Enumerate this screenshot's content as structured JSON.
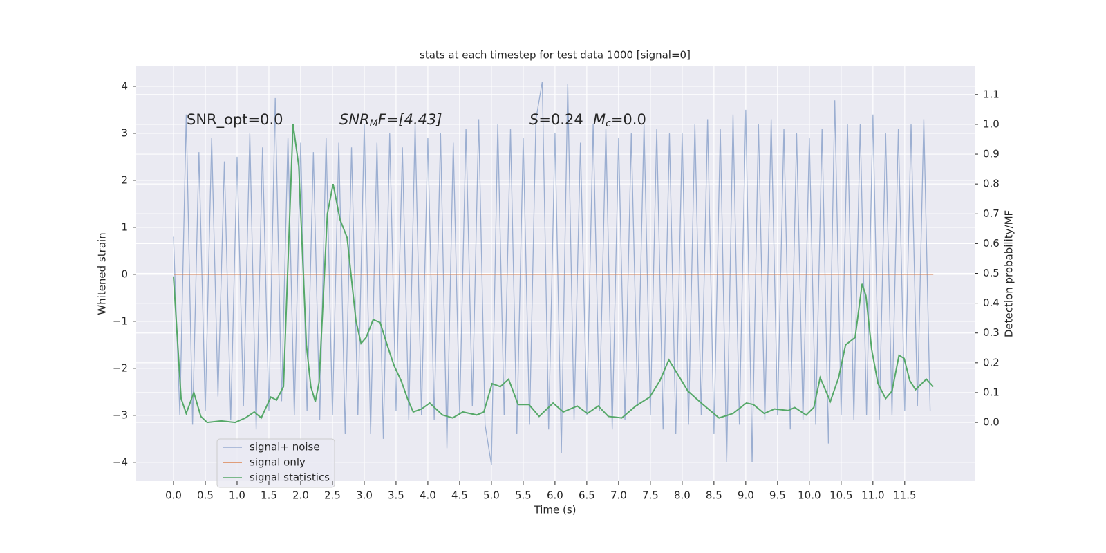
{
  "chart_data": {
    "type": "line",
    "title": "stats at each timestep for test data 1000 [signal=0]",
    "xlabel": "Time (s)",
    "ylabel": "Whitened strain",
    "y2label": "Detection probability/MF",
    "annotations": [
      [
        "SNR_opt=0.0"
      ],
      [
        "SNR",
        "M",
        "F=[4.43]"
      ],
      [
        "S",
        "=0.24",
        "M",
        "c",
        "=0.0"
      ]
    ],
    "xlim": [
      -0.587,
      12.6
    ],
    "ylim": [
      -4.4,
      4.44
    ],
    "y2lim": [
      -0.197,
      1.197
    ],
    "xticks": [
      {
        "value": 0,
        "label": "0.0"
      },
      0.5,
      {
        "value": 1,
        "label": "1.0"
      },
      1.5,
      {
        "value": 2,
        "label": "2.0"
      },
      2.5,
      {
        "value": 3,
        "label": "3.0"
      },
      3.5,
      {
        "value": 4,
        "label": "4.0"
      },
      4.5,
      {
        "value": 5,
        "label": "5.0"
      },
      5.5,
      {
        "value": 6,
        "label": "6.0"
      },
      6.5,
      {
        "value": 7,
        "label": "7.0"
      },
      7.5,
      {
        "value": 8,
        "label": "8.0"
      },
      8.5,
      {
        "value": 9,
        "label": "9.0"
      },
      9.5,
      {
        "value": 10,
        "label": "10.0"
      },
      10.5,
      {
        "value": 11,
        "label": "11.0"
      },
      11.5
    ],
    "yticks": [
      {
        "value": -4,
        "label": "−4"
      },
      {
        "value": -3,
        "label": "−3"
      },
      {
        "value": -2,
        "label": "−2"
      },
      {
        "value": -1,
        "label": "−1"
      },
      0,
      1,
      2,
      3,
      4
    ],
    "y2ticks": [
      {
        "value": 0,
        "label": "0.0"
      },
      0.1,
      0.2,
      0.3,
      0.4,
      0.5,
      0.6,
      0.7,
      0.8,
      0.9,
      {
        "value": 1,
        "label": "1.0"
      },
      1.1
    ],
    "grid": true,
    "legend_loc": "lower left",
    "series": [
      {
        "name": "signal+ noise",
        "color": "#4c72b0",
        "opacity": 0.5,
        "x": [
          0.0,
          0.1,
          0.2,
          0.3,
          0.4,
          0.5,
          0.6,
          0.7,
          0.8,
          0.9,
          1.0,
          1.1,
          1.2,
          1.3,
          1.4,
          1.5,
          1.6,
          1.7,
          1.8,
          1.9,
          2.0,
          2.1,
          2.2,
          2.3,
          2.4,
          2.5,
          2.6,
          2.7,
          2.8,
          2.9,
          3.0,
          3.1,
          3.2,
          3.3,
          3.4,
          3.5,
          3.6,
          3.7,
          3.8,
          3.9,
          4.0,
          4.1,
          4.2,
          4.3,
          4.4,
          4.5,
          4.6,
          4.7,
          4.8,
          4.9,
          5.0,
          5.1,
          5.2,
          5.3,
          5.4,
          5.5,
          5.6,
          5.7,
          5.8,
          5.9,
          6.0,
          6.1,
          6.2,
          6.3,
          6.4,
          6.5,
          6.6,
          6.7,
          6.8,
          6.9,
          7.0,
          7.1,
          7.2,
          7.3,
          7.4,
          7.5,
          7.6,
          7.7,
          7.8,
          7.9,
          8.0,
          8.1,
          8.2,
          8.3,
          8.4,
          8.5,
          8.6,
          8.7,
          8.8,
          8.9,
          9.0,
          9.1,
          9.2,
          9.3,
          9.4,
          9.5,
          9.6,
          9.7,
          9.8,
          9.9,
          10.0,
          10.1,
          10.2,
          10.3,
          10.4,
          10.5,
          10.6,
          10.7,
          10.8,
          10.9,
          11.0,
          11.1,
          11.2,
          11.3,
          11.4,
          11.5,
          11.6,
          11.7,
          11.8,
          11.9
        ],
        "values": [
          0.8,
          -3.0,
          3.4,
          -3.2,
          2.6,
          -2.9,
          2.9,
          -2.6,
          2.4,
          -3.1,
          2.5,
          -2.8,
          3.0,
          -3.3,
          2.7,
          -2.9,
          3.75,
          -2.7,
          2.9,
          -3.0,
          2.8,
          -2.9,
          2.6,
          -3.1,
          2.9,
          -3.0,
          2.8,
          -3.4,
          2.7,
          -3.0,
          3.2,
          -3.4,
          2.8,
          -3.5,
          3.0,
          -2.9,
          2.7,
          -3.1,
          3.2,
          -3.0,
          2.9,
          -3.1,
          3.0,
          -3.7,
          2.8,
          -3.0,
          3.1,
          -2.8,
          3.3,
          -3.2,
          -4.05,
          3.2,
          -3.0,
          3.1,
          -3.4,
          2.9,
          -3.2,
          3.3,
          4.1,
          -3.3,
          3.0,
          -3.8,
          4.05,
          -3.1,
          2.8,
          -3.0,
          3.2,
          -2.9,
          3.1,
          -3.3,
          2.9,
          -3.1,
          3.0,
          -2.8,
          3.2,
          -3.0,
          3.1,
          -3.3,
          3.0,
          -3.4,
          3.0,
          -3.2,
          3.2,
          -3.0,
          3.3,
          -3.4,
          3.1,
          -4.0,
          3.4,
          -3.2,
          3.5,
          -4.0,
          3.2,
          -3.1,
          3.3,
          -3.0,
          3.1,
          -3.3,
          3.0,
          -3.1,
          2.9,
          -3.2,
          3.1,
          -3.6,
          3.7,
          -3.0,
          3.2,
          -3.1,
          3.2,
          -3.0,
          3.4,
          -3.1,
          3.0,
          -3.0,
          3.1,
          -2.9,
          3.2,
          -2.8,
          3.3,
          -2.9
        ]
      },
      {
        "name": "signal only",
        "color": "#dd8452",
        "x": [
          0.0,
          11.95
        ],
        "values": [
          0,
          0
        ]
      },
      {
        "name": "signal statistics",
        "color": "#55a868",
        "axis": "y2",
        "x": [
          0.0,
          0.12,
          0.2,
          0.32,
          0.43,
          0.53,
          0.75,
          0.97,
          1.13,
          1.27,
          1.38,
          1.53,
          1.62,
          1.73,
          1.88,
          1.97,
          2.09,
          2.16,
          2.23,
          2.29,
          2.42,
          2.51,
          2.62,
          2.73,
          2.87,
          2.95,
          3.03,
          3.14,
          3.25,
          3.36,
          3.47,
          3.58,
          3.68,
          3.77,
          3.9,
          4.03,
          4.23,
          4.39,
          4.55,
          4.77,
          4.88,
          5.01,
          5.14,
          5.27,
          5.42,
          5.59,
          5.75,
          5.97,
          6.13,
          6.35,
          6.51,
          6.68,
          6.84,
          7.05,
          7.27,
          7.49,
          7.65,
          7.79,
          7.92,
          8.09,
          8.3,
          8.58,
          8.8,
          9.01,
          9.12,
          9.29,
          9.45,
          9.67,
          9.77,
          9.95,
          10.07,
          10.17,
          10.33,
          10.46,
          10.57,
          10.72,
          10.83,
          10.89,
          10.98,
          11.08,
          11.2,
          11.3,
          11.41,
          11.49,
          11.58,
          11.67,
          11.84,
          11.95
        ],
        "values": [
          0.49,
          0.08,
          0.03,
          0.1,
          0.02,
          0.0,
          0.005,
          0.0,
          0.015,
          0.035,
          0.015,
          0.085,
          0.075,
          0.12,
          1.0,
          0.86,
          0.26,
          0.12,
          0.07,
          0.135,
          0.7,
          0.8,
          0.68,
          0.62,
          0.34,
          0.265,
          0.285,
          0.345,
          0.335,
          0.26,
          0.19,
          0.14,
          0.08,
          0.035,
          0.045,
          0.065,
          0.025,
          0.015,
          0.035,
          0.025,
          0.035,
          0.13,
          0.12,
          0.145,
          0.06,
          0.06,
          0.02,
          0.065,
          0.035,
          0.055,
          0.03,
          0.055,
          0.02,
          0.015,
          0.055,
          0.085,
          0.14,
          0.21,
          0.165,
          0.105,
          0.065,
          0.015,
          0.03,
          0.065,
          0.06,
          0.03,
          0.045,
          0.04,
          0.05,
          0.025,
          0.05,
          0.15,
          0.07,
          0.15,
          0.26,
          0.285,
          0.465,
          0.425,
          0.245,
          0.13,
          0.08,
          0.105,
          0.225,
          0.215,
          0.14,
          0.11,
          0.145,
          0.12
        ]
      }
    ]
  }
}
